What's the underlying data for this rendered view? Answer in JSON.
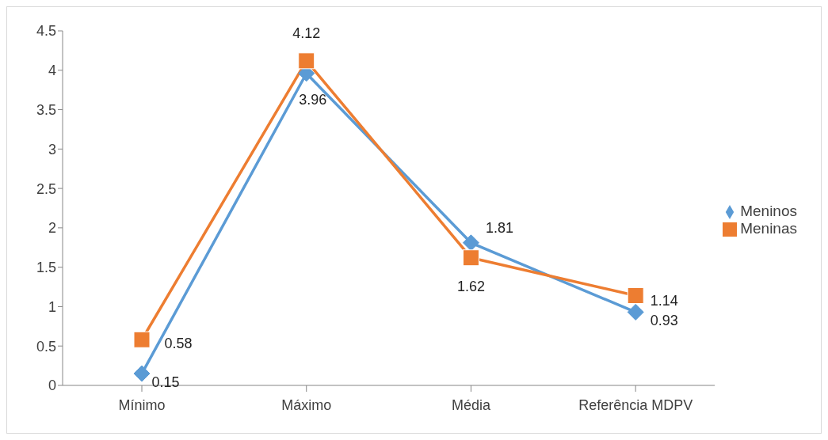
{
  "chart_data": {
    "type": "line",
    "categories": [
      "Mínimo",
      "Máximo",
      "Média",
      "Referência MDPV"
    ],
    "series": [
      {
        "name": "Meninos",
        "color": "#5b9bd5",
        "marker": "diamond",
        "values": [
          0.15,
          3.96,
          1.81,
          0.93
        ]
      },
      {
        "name": "Meninas",
        "color": "#ed7d31",
        "marker": "square",
        "values": [
          0.58,
          4.12,
          1.62,
          1.14
        ]
      }
    ],
    "ylim": [
      0,
      4.5
    ],
    "yticks": [
      0,
      0.5,
      1,
      1.5,
      2,
      2.5,
      3,
      3.5,
      4,
      4.5
    ],
    "grid": false,
    "legend": "right",
    "data_labels": true
  }
}
